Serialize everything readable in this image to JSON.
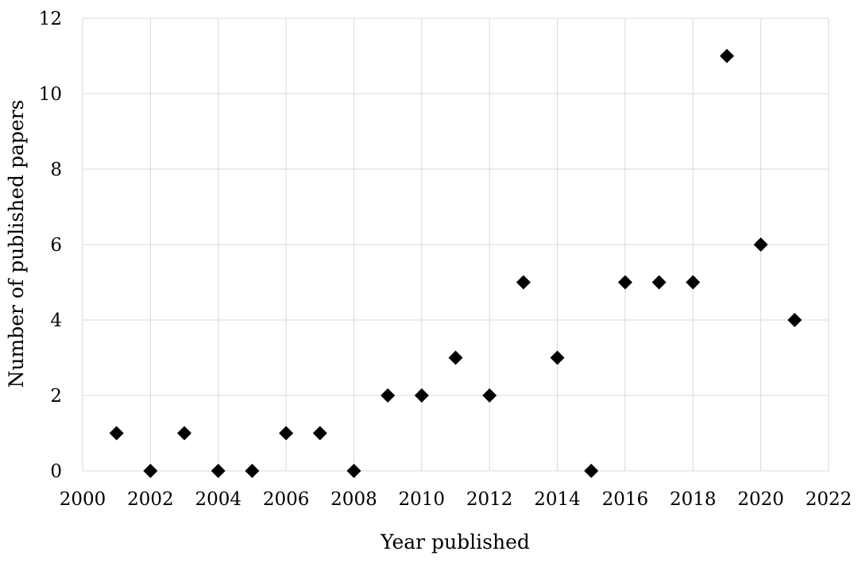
{
  "chart_data": {
    "type": "scatter",
    "title": "",
    "xlabel": "Year published",
    "ylabel": "Number of published papers",
    "xlim": [
      2000,
      2022
    ],
    "ylim": [
      0,
      12
    ],
    "xticks": [
      "2000",
      "2002",
      "2004",
      "2006",
      "2008",
      "2010",
      "2012",
      "2014",
      "2016",
      "2018",
      "2020",
      "2022"
    ],
    "yticks": [
      "0",
      "2",
      "4",
      "6",
      "8",
      "10",
      "12"
    ],
    "grid": true,
    "marker": "diamond",
    "marker_color": "#000000",
    "series": [
      {
        "x": [
          2001,
          2002,
          2003,
          2004,
          2005,
          2006,
          2007,
          2008,
          2009,
          2010,
          2011,
          2012,
          2013,
          2014,
          2015,
          2016,
          2017,
          2018,
          2019,
          2020,
          2021
        ],
        "y": [
          1,
          0,
          1,
          0,
          0,
          1,
          1,
          0,
          2,
          2,
          3,
          2,
          5,
          3,
          0,
          5,
          5,
          5,
          11,
          6,
          4
        ]
      }
    ]
  }
}
